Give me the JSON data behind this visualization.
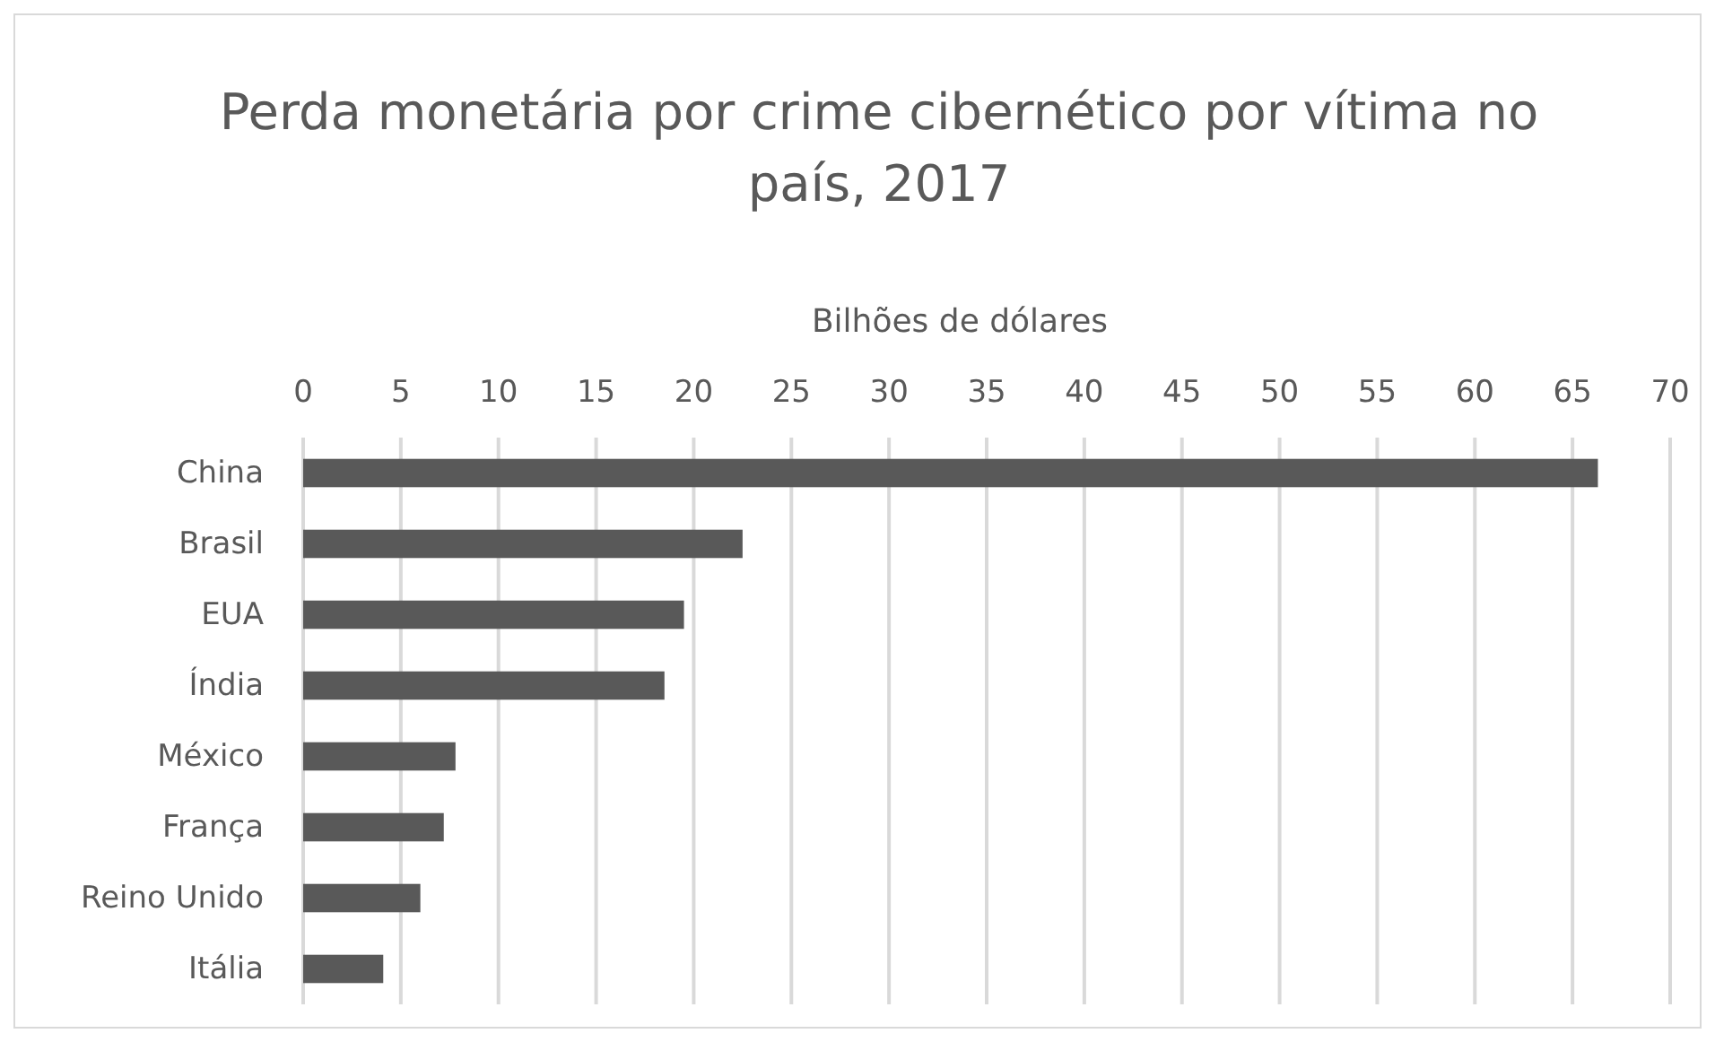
{
  "chart_data": {
    "type": "bar",
    "orientation": "horizontal",
    "title": "Perda monetária por crime cibernético por vítima no país, 2017",
    "xlabel": "Bilhões de dólares",
    "categories": [
      "China",
      "Brasil",
      "EUA",
      "Índia",
      "México",
      "França",
      "Reino Unido",
      "Itália"
    ],
    "values": [
      66.3,
      22.5,
      19.5,
      18.5,
      7.8,
      7.2,
      6.0,
      4.1
    ],
    "color": "#595959",
    "xlim": [
      0,
      70
    ],
    "xticks": [
      0,
      5,
      10,
      15,
      20,
      25,
      30,
      35,
      40,
      45,
      50,
      55,
      60,
      65,
      70
    ],
    "grid": "x"
  }
}
